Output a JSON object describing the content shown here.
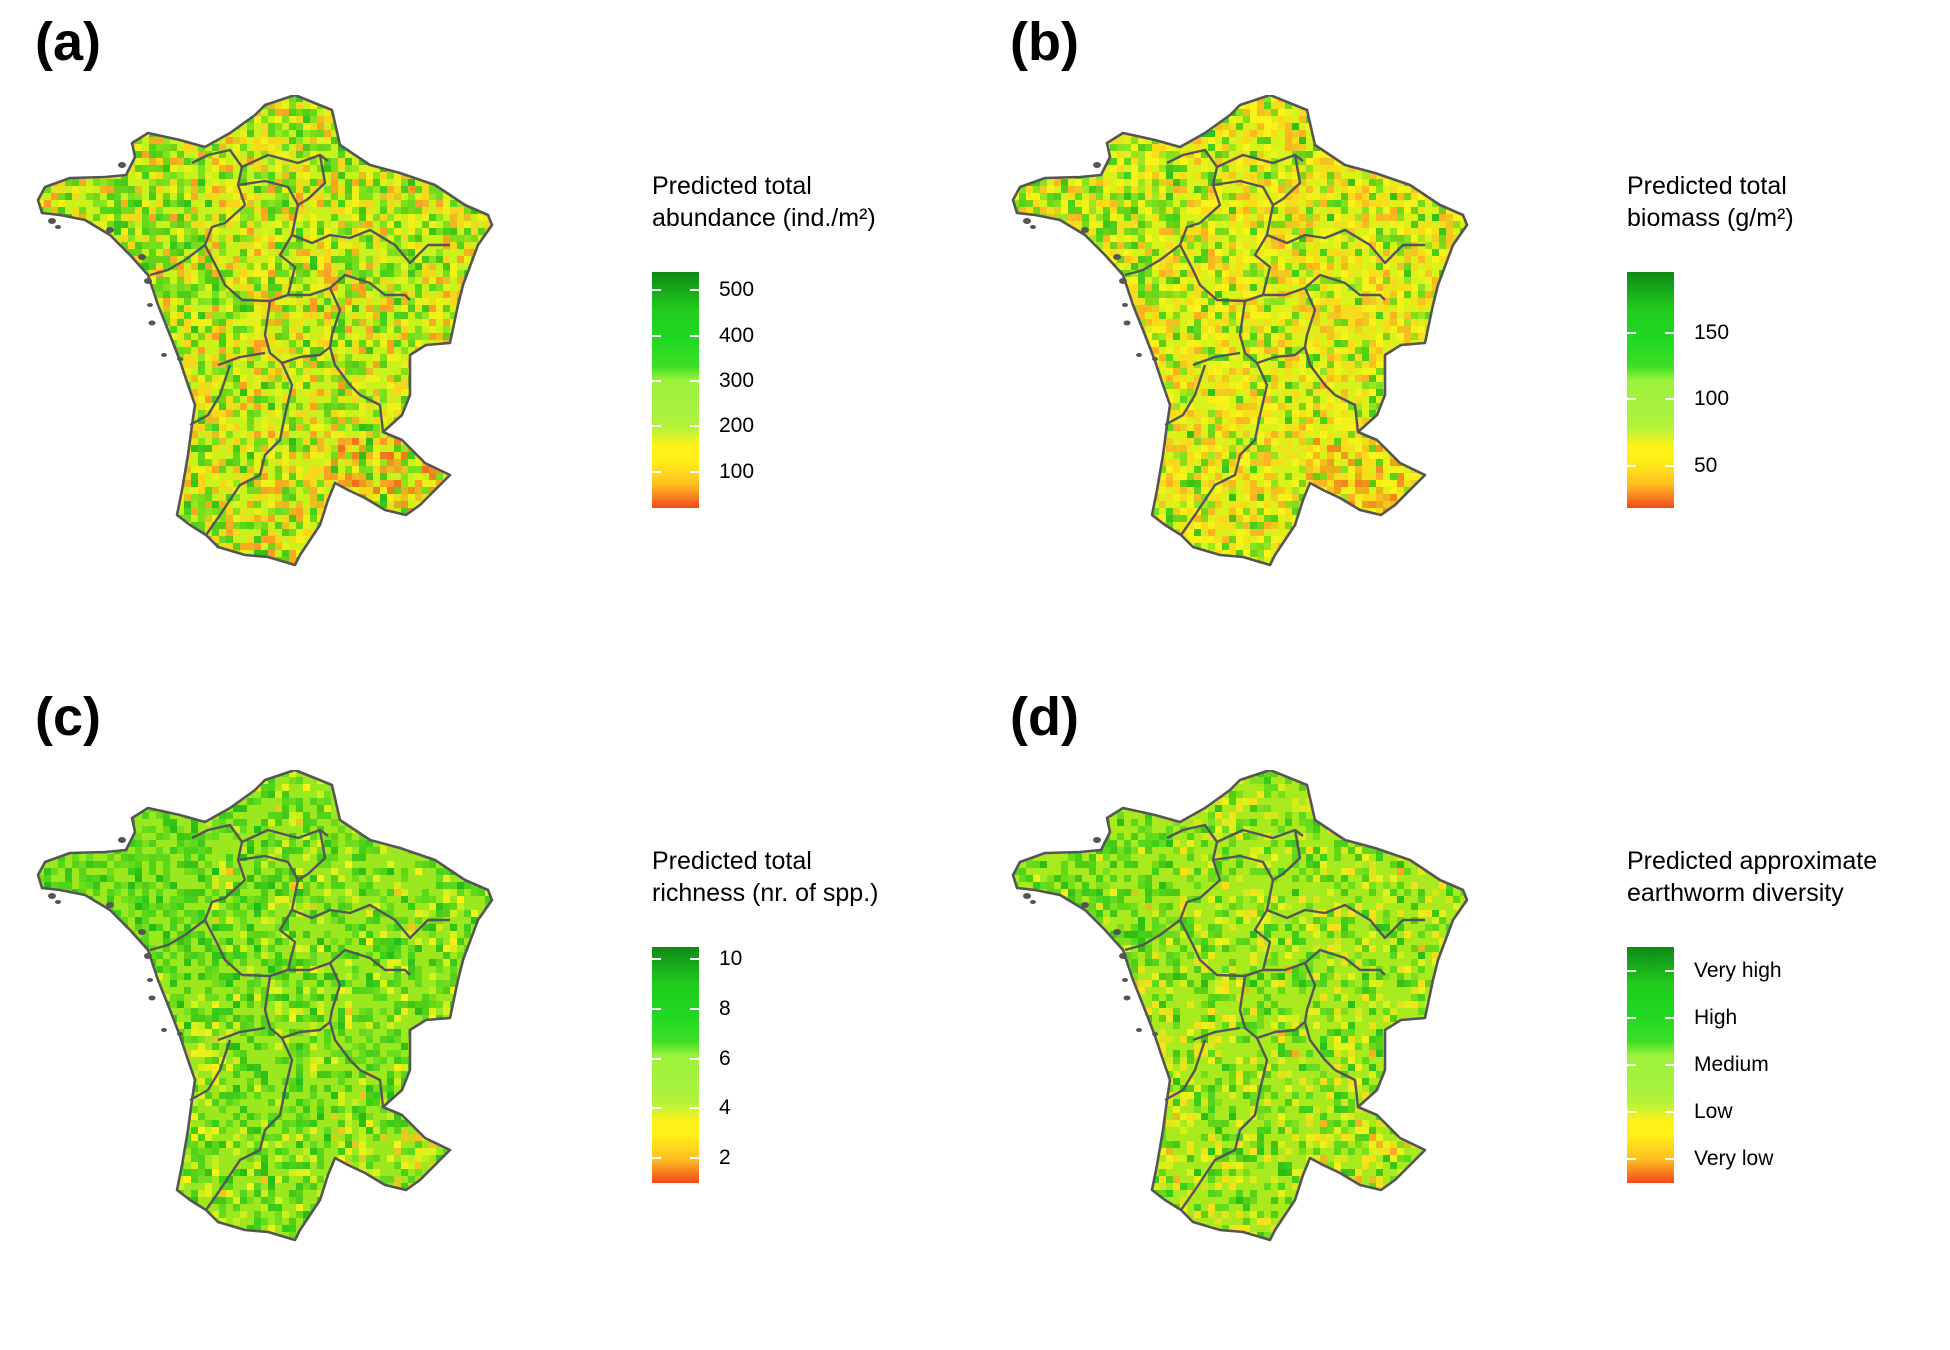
{
  "panels": [
    {
      "label": "(a)",
      "legend_title": [
        "Predicted total",
        "abundance (ind./m²)"
      ],
      "scale": {
        "min": 20,
        "max": 540
      },
      "ticks": [
        {
          "value": 500,
          "label": "500"
        },
        {
          "value": 400,
          "label": "400"
        },
        {
          "value": 300,
          "label": "300"
        },
        {
          "value": 200,
          "label": "200"
        },
        {
          "value": 100,
          "label": "100"
        }
      ],
      "map_palette": {
        "base": "#c9f21c",
        "greens": [
          "#3fcf1a",
          "#6cdc1e",
          "#2fbf18"
        ],
        "warms": [
          "#f5f017",
          "#ffd21a",
          "#ff9a22",
          "#f56a1c"
        ],
        "green_share": 0.32,
        "warm_share": 0.42
      }
    },
    {
      "label": "(b)",
      "legend_title": [
        "Predicted total",
        "biomass (g/m²)"
      ],
      "scale": {
        "min": 18,
        "max": 196
      },
      "ticks": [
        {
          "value": 150,
          "label": "150"
        },
        {
          "value": 100,
          "label": "100"
        },
        {
          "value": 50,
          "label": "50"
        }
      ],
      "map_palette": {
        "base": "#d8f21a",
        "greens": [
          "#3fcf1a",
          "#7ce020",
          "#2fbf18"
        ],
        "warms": [
          "#fff21a",
          "#ffd81a",
          "#ffae22",
          "#f5801c"
        ],
        "green_share": 0.22,
        "warm_share": 0.55
      }
    },
    {
      "label": "(c)",
      "legend_title": [
        "Predicted total",
        "richness (nr. of spp.)"
      ],
      "scale": {
        "min": 1,
        "max": 10.5
      },
      "ticks": [
        {
          "value": 10,
          "label": "10"
        },
        {
          "value": 8,
          "label": "8"
        },
        {
          "value": 6,
          "label": "6"
        },
        {
          "value": 4,
          "label": "4"
        },
        {
          "value": 2,
          "label": "2"
        }
      ],
      "map_palette": {
        "base": "#9be81e",
        "greens": [
          "#33cc18",
          "#55d61c",
          "#22bb16"
        ],
        "warms": [
          "#e6f21a",
          "#fff21a",
          "#ffc020"
        ],
        "green_share": 0.4,
        "warm_share": 0.12
      }
    },
    {
      "label": "(d)",
      "legend_title": [
        "Predicted approximate",
        "earthworm diversity"
      ],
      "scale": {
        "min": 0,
        "max": 5
      },
      "ticks": [
        {
          "value": 4.5,
          "label": "Very high"
        },
        {
          "value": 3.5,
          "label": "High"
        },
        {
          "value": 2.5,
          "label": "Medium"
        },
        {
          "value": 1.5,
          "label": "Low"
        },
        {
          "value": 0.5,
          "label": "Very low"
        }
      ],
      "map_palette": {
        "base": "#a8ea1e",
        "greens": [
          "#36cc18",
          "#5ad81c",
          "#26bd16"
        ],
        "warms": [
          "#f2f21a",
          "#ffe01a",
          "#ffa822"
        ],
        "green_share": 0.3,
        "warm_share": 0.2
      }
    }
  ]
}
